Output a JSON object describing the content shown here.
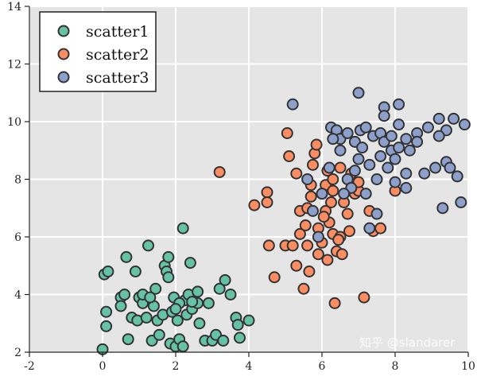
{
  "chart_data": {
    "type": "scatter",
    "title": "",
    "xlabel": "",
    "ylabel": "",
    "xlim": [
      -2,
      10
    ],
    "ylim": [
      2,
      14
    ],
    "xticks": [
      "-2",
      "0",
      "2",
      "4",
      "6",
      "8",
      "10"
    ],
    "yticks": [
      "2",
      "4",
      "6",
      "8",
      "10",
      "12",
      "14"
    ],
    "grid": true,
    "background": "#e5e5e5",
    "legend_position": "top-left",
    "watermark": "知乎 @slandarer",
    "series": [
      {
        "name": "scatter1",
        "color": "#66c2a5",
        "points": [
          [
            0,
            2.1
          ],
          [
            0.05,
            4.7
          ],
          [
            0.15,
            4.8
          ],
          [
            0.1,
            3.4
          ],
          [
            0.1,
            2.9
          ],
          [
            0.5,
            3.9
          ],
          [
            0.5,
            3.6
          ],
          [
            0.6,
            4.0
          ],
          [
            0.65,
            5.3
          ],
          [
            0.7,
            2.45
          ],
          [
            0.8,
            3.2
          ],
          [
            0.95,
            3.1
          ],
          [
            0.9,
            4.8
          ],
          [
            1.0,
            3.9
          ],
          [
            1.1,
            3.7
          ],
          [
            1.2,
            3.2
          ],
          [
            1.25,
            5.7
          ],
          [
            1.35,
            2.4
          ],
          [
            1.4,
            3.6
          ],
          [
            1.45,
            4.2
          ],
          [
            1.5,
            3.1
          ],
          [
            1.55,
            2.6
          ],
          [
            1.65,
            3.3
          ],
          [
            1.7,
            5.0
          ],
          [
            1.75,
            4.8
          ],
          [
            1.8,
            5.3
          ],
          [
            1.8,
            4.6
          ],
          [
            1.85,
            2.3
          ],
          [
            1.9,
            3.4
          ],
          [
            1.95,
            3.9
          ],
          [
            2.0,
            2.2
          ],
          [
            2.05,
            3.1
          ],
          [
            2.1,
            2.45
          ],
          [
            2.2,
            6.3
          ],
          [
            2.25,
            3.8
          ],
          [
            2.3,
            3.3
          ],
          [
            2.35,
            4.0
          ],
          [
            2.4,
            5.1
          ],
          [
            2.45,
            3.5
          ],
          [
            2.6,
            4.1
          ],
          [
            2.6,
            3.7
          ],
          [
            2.65,
            3.0
          ],
          [
            2.8,
            2.4
          ],
          [
            2.9,
            3.7
          ],
          [
            3.0,
            2.4
          ],
          [
            3.1,
            2.6
          ],
          [
            3.2,
            4.2
          ],
          [
            3.35,
            4.5
          ],
          [
            3.3,
            2.4
          ],
          [
            3.5,
            4.0
          ],
          [
            3.65,
            3.2
          ],
          [
            3.7,
            2.95
          ],
          [
            3.75,
            2.5
          ],
          [
            4.0,
            3.1
          ],
          [
            2.2,
            2.2
          ],
          [
            1.1,
            4.0
          ],
          [
            2.1,
            3.7
          ],
          [
            1.3,
            3.9
          ],
          [
            2.45,
            3.75
          ],
          [
            2.0,
            3.5
          ]
        ]
      },
      {
        "name": "scatter2",
        "color": "#fc8d62",
        "points": [
          [
            3.2,
            8.25
          ],
          [
            4.15,
            7.1
          ],
          [
            4.5,
            7.55
          ],
          [
            4.5,
            7.2
          ],
          [
            4.55,
            5.7
          ],
          [
            4.7,
            4.6
          ],
          [
            5.0,
            5.7
          ],
          [
            5.2,
            5.7
          ],
          [
            5.05,
            9.6
          ],
          [
            5.1,
            8.8
          ],
          [
            5.3,
            8.2
          ],
          [
            5.4,
            6.1
          ],
          [
            5.5,
            4.2
          ],
          [
            5.4,
            6.9
          ],
          [
            5.55,
            6.4
          ],
          [
            5.6,
            7.0
          ],
          [
            5.7,
            7.4
          ],
          [
            5.75,
            8.5
          ],
          [
            5.8,
            8.9
          ],
          [
            5.85,
            9.2
          ],
          [
            5.9,
            6.3
          ],
          [
            6.0,
            5.8
          ],
          [
            6.1,
            6.9
          ],
          [
            6.2,
            6.5
          ],
          [
            6.0,
            7.5
          ],
          [
            6.1,
            7.8
          ],
          [
            6.15,
            8.3
          ],
          [
            6.3,
            8.0
          ],
          [
            6.3,
            6.1
          ],
          [
            6.35,
            3.7
          ],
          [
            6.4,
            5.5
          ],
          [
            6.5,
            6.0
          ],
          [
            6.55,
            5.4
          ],
          [
            6.6,
            7.2
          ],
          [
            6.7,
            6.8
          ],
          [
            6.8,
            8.2
          ],
          [
            6.9,
            7.5
          ],
          [
            7.0,
            7.6
          ],
          [
            7.15,
            3.9
          ],
          [
            7.3,
            6.9
          ],
          [
            7.4,
            6.2
          ],
          [
            7.6,
            6.3
          ],
          [
            8.0,
            7.6
          ],
          [
            6.05,
            6.7
          ],
          [
            6.25,
            7.2
          ],
          [
            5.6,
            5.7
          ],
          [
            5.9,
            5.4
          ],
          [
            6.15,
            5.2
          ],
          [
            5.3,
            5.0
          ],
          [
            5.65,
            4.8
          ],
          [
            6.5,
            8.4
          ],
          [
            5.7,
            7.8
          ],
          [
            6.45,
            5.9
          ],
          [
            6.3,
            7.6
          ],
          [
            7.0,
            7.9
          ],
          [
            6.75,
            6.2
          ]
        ]
      },
      {
        "name": "scatter3",
        "color": "#8da0cb",
        "points": [
          [
            5.2,
            10.6
          ],
          [
            7.0,
            11.0
          ],
          [
            7.7,
            10.5
          ],
          [
            8.1,
            10.6
          ],
          [
            7.7,
            10.2
          ],
          [
            8.1,
            9.9
          ],
          [
            5.6,
            8.0
          ],
          [
            5.9,
            6.0
          ],
          [
            6.25,
            9.8
          ],
          [
            6.4,
            9.7
          ],
          [
            6.5,
            9.4
          ],
          [
            6.7,
            9.6
          ],
          [
            6.9,
            9.3
          ],
          [
            7.05,
            9.7
          ],
          [
            7.2,
            9.8
          ],
          [
            7.4,
            9.5
          ],
          [
            7.6,
            9.6
          ],
          [
            7.7,
            9.3
          ],
          [
            7.9,
            9.0
          ],
          [
            8.1,
            9.1
          ],
          [
            8.3,
            9.4
          ],
          [
            8.6,
            9.6
          ],
          [
            8.9,
            9.8
          ],
          [
            9.2,
            10.1
          ],
          [
            9.4,
            9.7
          ],
          [
            9.6,
            10.1
          ],
          [
            9.9,
            9.9
          ],
          [
            9.2,
            9.5
          ],
          [
            9.4,
            8.6
          ],
          [
            9.5,
            8.4
          ],
          [
            9.7,
            8.1
          ],
          [
            9.8,
            7.2
          ],
          [
            9.3,
            7.0
          ],
          [
            9.1,
            8.4
          ],
          [
            8.8,
            8.2
          ],
          [
            8.4,
            9.0
          ],
          [
            8.3,
            8.2
          ],
          [
            8.3,
            7.7
          ],
          [
            7.5,
            6.8
          ],
          [
            7.3,
            6.3
          ],
          [
            6.9,
            8.3
          ],
          [
            6.7,
            8.0
          ],
          [
            6.8,
            7.7
          ],
          [
            6.2,
            8.4
          ],
          [
            6.0,
            7.5
          ],
          [
            6.5,
            9.0
          ],
          [
            7.0,
            8.7
          ],
          [
            7.3,
            8.5
          ],
          [
            7.6,
            8.8
          ],
          [
            7.8,
            8.4
          ],
          [
            8.0,
            8.7
          ],
          [
            7.5,
            8.0
          ],
          [
            7.2,
            7.5
          ],
          [
            6.6,
            7.5
          ],
          [
            5.75,
            6.9
          ],
          [
            8.0,
            7.9
          ],
          [
            7.9,
            9.5
          ],
          [
            8.6,
            9.3
          ],
          [
            7.1,
            9.1
          ],
          [
            6.3,
            9.4
          ]
        ]
      }
    ]
  }
}
